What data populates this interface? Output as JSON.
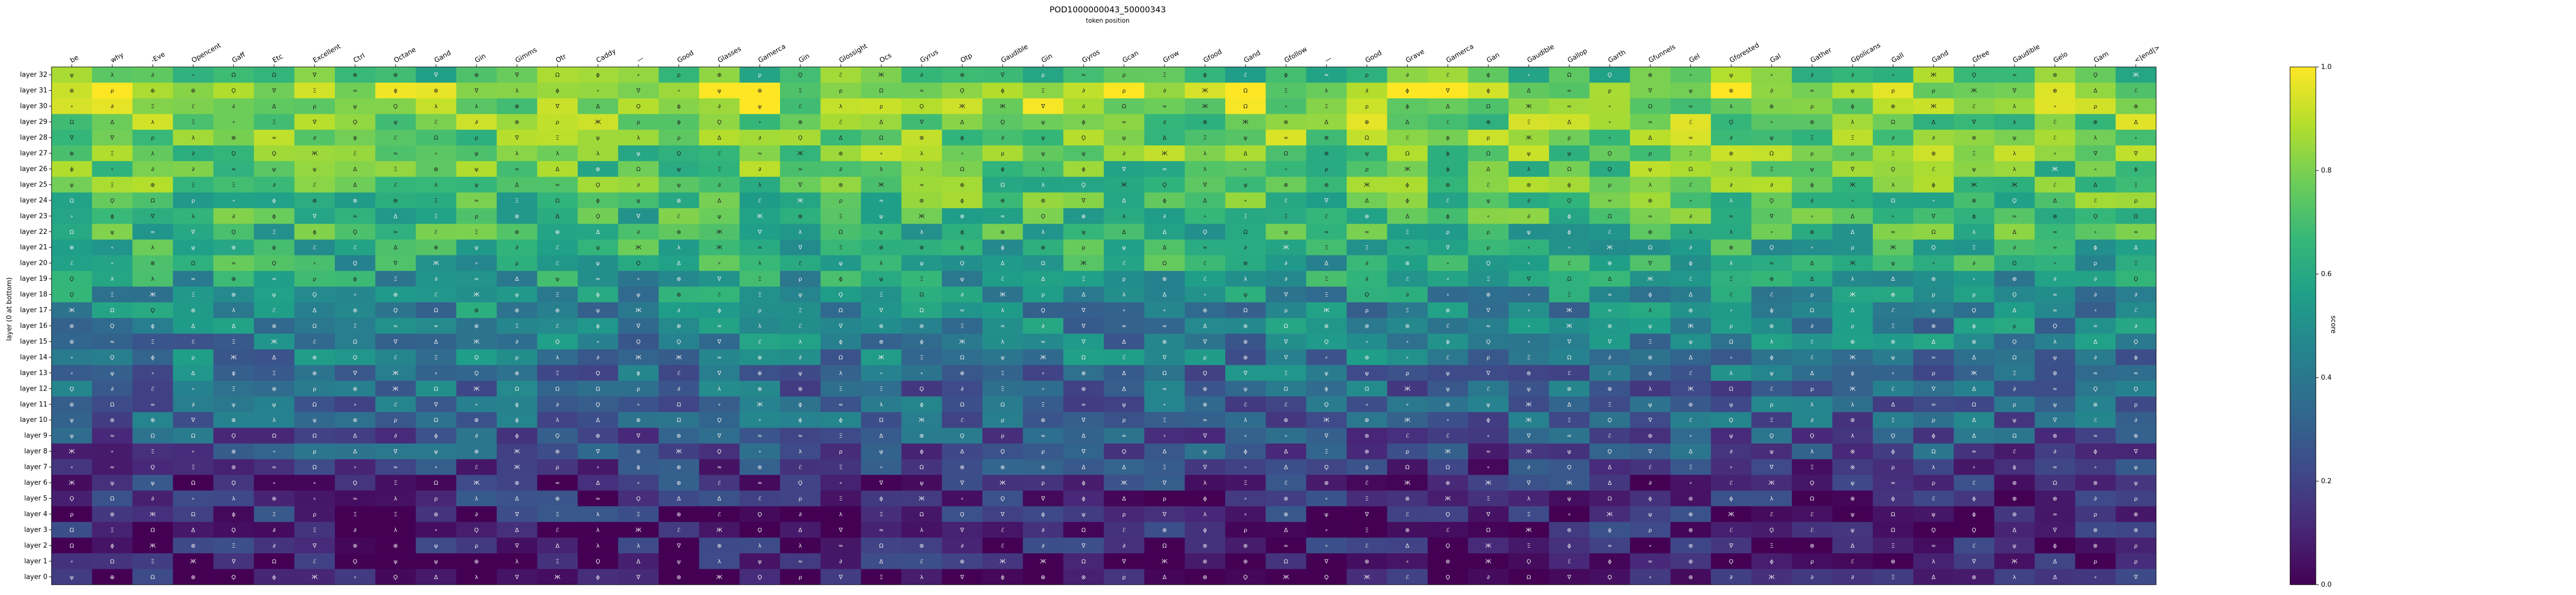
{
  "chart_data": {
    "type": "heatmap",
    "title": "POD1000000043_50000343",
    "subtitle": "token position",
    "xlabel": "",
    "ylabel": "layer (0 at bottom)",
    "colorbar_label": "score",
    "colormap": "viridis",
    "vmin": 0.0,
    "vmax": 1.0,
    "colorbar_ticks": [
      "0.0",
      "0.2",
      "0.4",
      "0.6",
      "0.8",
      "1.0"
    ],
    "x_tick_labels": [
      "be",
      "why",
      "-Eve",
      "Opencent",
      "Gaff",
      "Etc",
      "Excellent",
      "Ctrl",
      "Octane",
      "Gand",
      "Gin",
      "Gimms",
      "Otr",
      "Caddy",
      "—",
      "Good",
      "Glasses",
      "Gamerca",
      "Gin",
      "Glossight",
      "Ocs",
      "Gyrus",
      "Otp",
      "Gaudible",
      "Gin",
      "Gyros",
      "Gcan",
      "Grow",
      "Gfood",
      "Gand",
      "Gfollow",
      "—",
      "Good",
      "Grave",
      "Gamerca",
      "Gan",
      "Gaudible",
      "Gallop",
      "Garth",
      "Gfunnels",
      "Gel",
      "Gforested",
      "Gal",
      "Gather",
      "Gpolicans",
      "Gall",
      "Gand",
      "Gfree",
      "Gaudible",
      "Gelo",
      "Gam",
      "<|end|>"
    ],
    "y_tick_labels": [
      "layer 32",
      "layer 31",
      "layer 30",
      "layer 29",
      "layer 28",
      "layer 27",
      "layer 26",
      "layer 25",
      "layer 24",
      "layer 23",
      "layer 22",
      "layer 21",
      "layer 20",
      "layer 19",
      "layer 18",
      "layer 17",
      "layer 16",
      "layer 15",
      "layer 14",
      "layer 13",
      "layer 12",
      "layer 11",
      "layer 10",
      "layer 9",
      "layer 8",
      "layer 7",
      "layer 6",
      "layer 5",
      "layer 4",
      "layer 3",
      "layer 2",
      "layer 1",
      "layer 0"
    ],
    "cell_glyphs": [
      "Δ",
      "ℰ",
      "∇",
      "⊕",
      "Ϙ",
      "Ж",
      "λ",
      "Ω",
      "ψ",
      "∂",
      "⊗",
      "Ξ",
      "ρ",
      "ϕ",
      "≈",
      "∘"
    ],
    "layer_mean_scores": [
      0.72,
      0.88,
      0.85,
      0.8,
      0.78,
      0.76,
      0.74,
      0.72,
      0.7,
      0.68,
      0.66,
      0.63,
      0.6,
      0.55,
      0.5,
      0.46,
      0.44,
      0.42,
      0.4,
      0.36,
      0.33,
      0.31,
      0.3,
      0.27,
      0.24,
      0.18,
      0.14,
      0.12,
      0.11,
      0.1,
      0.09,
      0.08,
      0.06
    ],
    "legend": "right"
  }
}
